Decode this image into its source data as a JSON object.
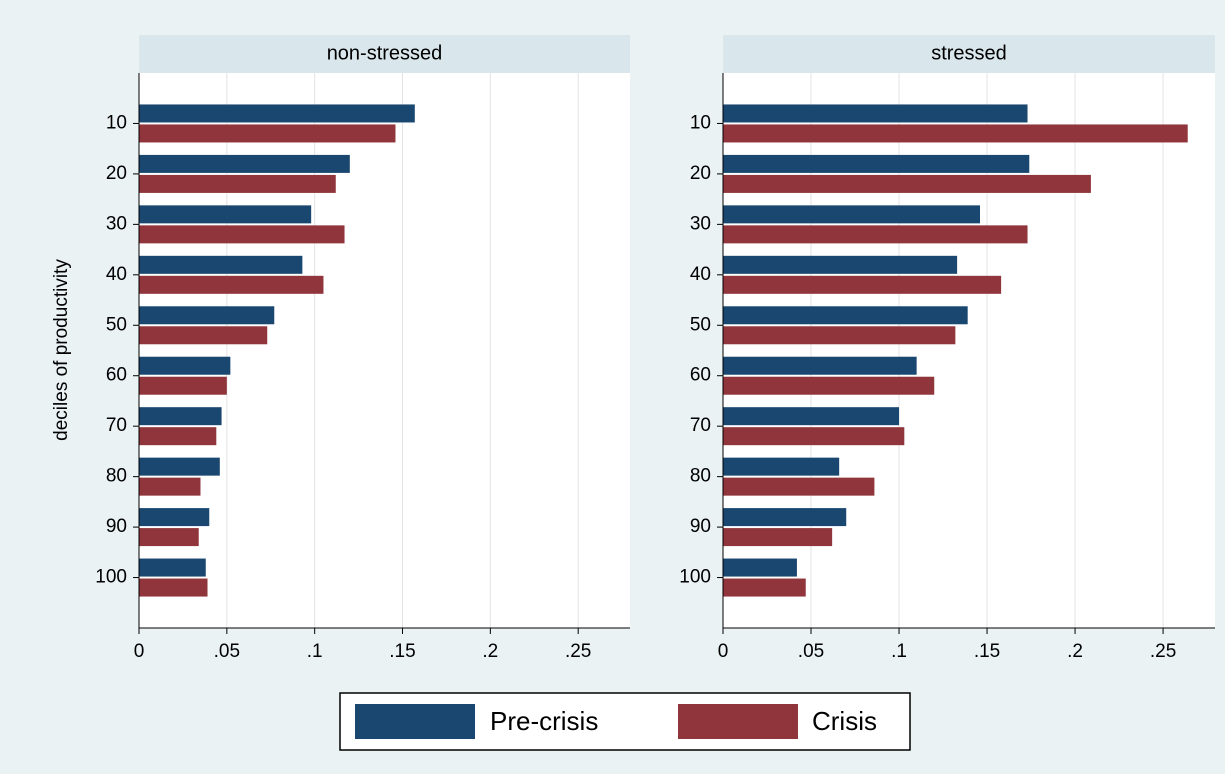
{
  "chart_data": [
    {
      "type": "barh",
      "title": "non-stressed",
      "y_label": "deciles of productivity",
      "categories": [
        "10",
        "20",
        "30",
        "40",
        "50",
        "60",
        "70",
        "80",
        "90",
        "100"
      ],
      "series": [
        {
          "name": "Pre-crisis",
          "color": "#1a476f",
          "values": [
            0.157,
            0.12,
            0.098,
            0.093,
            0.077,
            0.052,
            0.047,
            0.046,
            0.04,
            0.038
          ]
        },
        {
          "name": "Crisis",
          "color": "#90353b",
          "values": [
            0.146,
            0.112,
            0.117,
            0.105,
            0.073,
            0.05,
            0.044,
            0.035,
            0.034,
            0.039
          ]
        }
      ],
      "xlim": [
        0,
        0.2795
      ],
      "xticks": [
        0,
        {
          "value": 0.05,
          "label": ".05"
        },
        {
          "value": 0.1,
          "label": ".1"
        },
        {
          "value": 0.15,
          "label": ".15"
        },
        {
          "value": 0.2,
          "label": ".2"
        },
        {
          "value": 0.25,
          "label": ".25"
        }
      ],
      "grid": true
    },
    {
      "type": "barh",
      "title": "stressed",
      "categories": [
        "10",
        "20",
        "30",
        "40",
        "50",
        "60",
        "70",
        "80",
        "90",
        "100"
      ],
      "series": [
        {
          "color": "#1a476f",
          "values": [
            0.173,
            0.174,
            0.146,
            0.133,
            0.139,
            0.11,
            0.1,
            0.066,
            0.07,
            0.042
          ]
        },
        {
          "color": "#90353b",
          "values": [
            0.264,
            0.209,
            0.173,
            0.158,
            0.132,
            0.12,
            0.103,
            0.086,
            0.062,
            0.047
          ]
        }
      ],
      "xlim": [
        0,
        0.2795
      ],
      "xticks": [
        0,
        {
          "value": 0.05,
          "label": ".05"
        },
        {
          "value": 0.1,
          "label": ".1"
        },
        {
          "value": 0.15,
          "label": ".15"
        },
        {
          "value": 0.2,
          "label": ".2"
        },
        {
          "value": 0.25,
          "label": ".25"
        }
      ],
      "grid": true
    }
  ]
}
